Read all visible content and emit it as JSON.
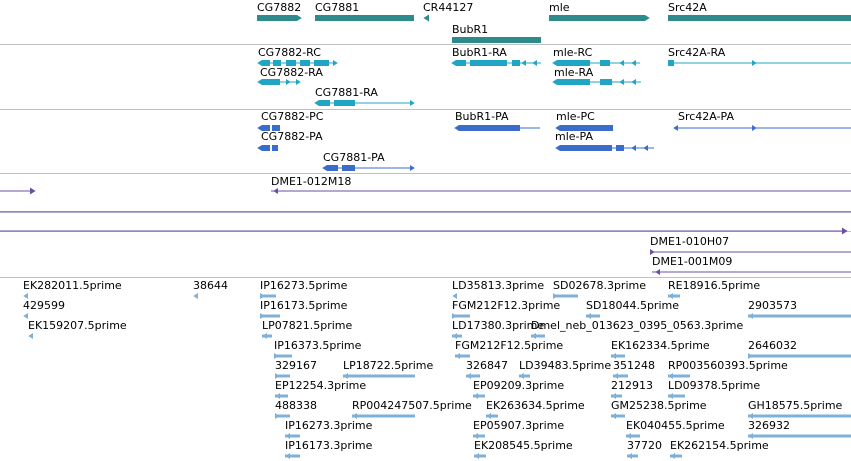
{
  "colors": {
    "gene": "#2e8b8b",
    "transcript_rc": "#20a6c4",
    "transcript_pc": "#3a6ccc",
    "clone": "#6a4fa8",
    "est": "#7fb0d8",
    "divider": "#c0c0c0"
  },
  "gene_track": [
    {
      "label": "CG7882"
    },
    {
      "label": "CG7881"
    },
    {
      "label": "CR44127"
    },
    {
      "label": "mle"
    },
    {
      "label": "Src42A"
    },
    {
      "label": "BubR1"
    }
  ],
  "transcript_rc_track": [
    {
      "label": "CG7882-RC"
    },
    {
      "label": "BubR1-RA"
    },
    {
      "label": "mle-RC"
    },
    {
      "label": "Src42A-RA"
    },
    {
      "label": "CG7882-RA"
    },
    {
      "label": "mle-RA"
    },
    {
      "label": "CG7881-RA"
    }
  ],
  "transcript_pc_track": [
    {
      "label": "CG7882-PC"
    },
    {
      "label": "BubR1-PA"
    },
    {
      "label": "mle-PC"
    },
    {
      "label": "Src42A-PA"
    },
    {
      "label": "CG7882-PA"
    },
    {
      "label": "mle-PA"
    },
    {
      "label": "CG7881-PA"
    }
  ],
  "clone_track": [
    {
      "label": "DME1-012M18"
    },
    {
      "label": "DME1-010H07"
    },
    {
      "label": "DME1-001M09"
    }
  ],
  "est_track": [
    {
      "label": "EK282011.5prime"
    },
    {
      "label": "38644"
    },
    {
      "label": "IP16273.5prime"
    },
    {
      "label": "LD35813.3prime"
    },
    {
      "label": "SD02678.3prime"
    },
    {
      "label": "RE18916.5prime"
    },
    {
      "label": "429599"
    },
    {
      "label": "IP16173.5prime"
    },
    {
      "label": "FGM212F12.3prime"
    },
    {
      "label": "SD18044.5prime"
    },
    {
      "label": "2903573"
    },
    {
      "label": "EK159207.5prime"
    },
    {
      "label": "LP07821.5prime"
    },
    {
      "label": "LD17380.3prime"
    },
    {
      "label": "Dmel_neb_013623_0395_0563.3prime"
    },
    {
      "label": "IP16373.5prime"
    },
    {
      "label": "FGM212F12.5prime"
    },
    {
      "label": "EK162334.5prime"
    },
    {
      "label": "2646032"
    },
    {
      "label": "329167"
    },
    {
      "label": "LP18722.5prime"
    },
    {
      "label": "326847"
    },
    {
      "label": "LD39483.5prime"
    },
    {
      "label": "351248"
    },
    {
      "label": "RP003560393.5prime"
    },
    {
      "label": "EP12254.3prime"
    },
    {
      "label": "EP09209.3prime"
    },
    {
      "label": "212913"
    },
    {
      "label": "LD09378.5prime"
    },
    {
      "label": "488338"
    },
    {
      "label": "RP004247507.5prime"
    },
    {
      "label": "EK263634.5prime"
    },
    {
      "label": "GM25238.5prime"
    },
    {
      "label": "GH18575.5prime"
    },
    {
      "label": "IP16273.3prime"
    },
    {
      "label": "EP05907.3prime"
    },
    {
      "label": "EK040455.5prime"
    },
    {
      "label": "326932"
    },
    {
      "label": "IP16173.3prime"
    },
    {
      "label": "EK208545.5prime"
    },
    {
      "label": "37720"
    },
    {
      "label": "EK262154.5prime"
    }
  ]
}
